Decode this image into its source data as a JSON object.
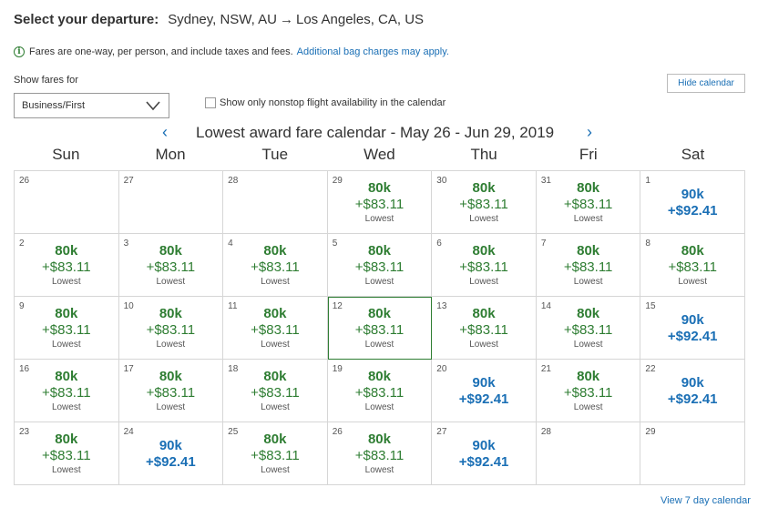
{
  "header": {
    "label": "Select your departure:",
    "origin": "Sydney, NSW, AU",
    "arrow": "→",
    "destination": "Los Angeles, CA, US"
  },
  "info": {
    "icon": "info-icon",
    "text": "Fares are one-way, per person, and include taxes and fees.",
    "link": "Additional bag charges may apply."
  },
  "filters": {
    "show_fares_label": "Show fares for",
    "cabin_selected": "Business/First",
    "nonstop_label": "Show only nonstop flight availability in the calendar",
    "hide_calendar": "Hide calendar"
  },
  "calendar": {
    "title": "Lowest award fare calendar - May 26 - Jun 29, 2019",
    "prev": "‹",
    "next": "›",
    "weekdays": [
      "Sun",
      "Mon",
      "Tue",
      "Wed",
      "Thu",
      "Fri",
      "Sat"
    ],
    "colors": {
      "lowest": "#2e7d32",
      "other": "#1a6fb5"
    },
    "cells": [
      {
        "day": "26"
      },
      {
        "day": "27"
      },
      {
        "day": "28"
      },
      {
        "day": "29",
        "miles": "80k",
        "tax": "+$83.11",
        "tag": "Lowest"
      },
      {
        "day": "30",
        "miles": "80k",
        "tax": "+$83.11",
        "tag": "Lowest"
      },
      {
        "day": "31",
        "miles": "80k",
        "tax": "+$83.11",
        "tag": "Lowest"
      },
      {
        "day": "1",
        "miles": "90k",
        "tax": "+$92.41"
      },
      {
        "day": "2",
        "miles": "80k",
        "tax": "+$83.11",
        "tag": "Lowest"
      },
      {
        "day": "3",
        "miles": "80k",
        "tax": "+$83.11",
        "tag": "Lowest"
      },
      {
        "day": "4",
        "miles": "80k",
        "tax": "+$83.11",
        "tag": "Lowest"
      },
      {
        "day": "5",
        "miles": "80k",
        "tax": "+$83.11",
        "tag": "Lowest"
      },
      {
        "day": "6",
        "miles": "80k",
        "tax": "+$83.11",
        "tag": "Lowest"
      },
      {
        "day": "7",
        "miles": "80k",
        "tax": "+$83.11",
        "tag": "Lowest"
      },
      {
        "day": "8",
        "miles": "80k",
        "tax": "+$83.11",
        "tag": "Lowest"
      },
      {
        "day": "9",
        "miles": "80k",
        "tax": "+$83.11",
        "tag": "Lowest"
      },
      {
        "day": "10",
        "miles": "80k",
        "tax": "+$83.11",
        "tag": "Lowest"
      },
      {
        "day": "11",
        "miles": "80k",
        "tax": "+$83.11",
        "tag": "Lowest"
      },
      {
        "day": "12",
        "miles": "80k",
        "tax": "+$83.11",
        "tag": "Lowest",
        "selected": true
      },
      {
        "day": "13",
        "miles": "80k",
        "tax": "+$83.11",
        "tag": "Lowest"
      },
      {
        "day": "14",
        "miles": "80k",
        "tax": "+$83.11",
        "tag": "Lowest"
      },
      {
        "day": "15",
        "miles": "90k",
        "tax": "+$92.41"
      },
      {
        "day": "16",
        "miles": "80k",
        "tax": "+$83.11",
        "tag": "Lowest"
      },
      {
        "day": "17",
        "miles": "80k",
        "tax": "+$83.11",
        "tag": "Lowest"
      },
      {
        "day": "18",
        "miles": "80k",
        "tax": "+$83.11",
        "tag": "Lowest"
      },
      {
        "day": "19",
        "miles": "80k",
        "tax": "+$83.11",
        "tag": "Lowest"
      },
      {
        "day": "20",
        "miles": "90k",
        "tax": "+$92.41"
      },
      {
        "day": "21",
        "miles": "80k",
        "tax": "+$83.11",
        "tag": "Lowest"
      },
      {
        "day": "22",
        "miles": "90k",
        "tax": "+$92.41"
      },
      {
        "day": "23",
        "miles": "80k",
        "tax": "+$83.11",
        "tag": "Lowest"
      },
      {
        "day": "24",
        "miles": "90k",
        "tax": "+$92.41"
      },
      {
        "day": "25",
        "miles": "80k",
        "tax": "+$83.11",
        "tag": "Lowest"
      },
      {
        "day": "26",
        "miles": "80k",
        "tax": "+$83.11",
        "tag": "Lowest"
      },
      {
        "day": "27",
        "miles": "90k",
        "tax": "+$92.41"
      },
      {
        "day": "28"
      },
      {
        "day": "29"
      }
    ]
  },
  "footer": {
    "view7": "View 7 day calendar"
  }
}
